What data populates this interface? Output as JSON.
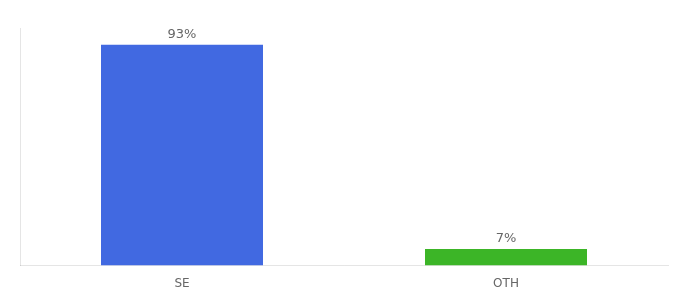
{
  "chart_data": {
    "type": "bar",
    "categories": [
      "SE",
      "OTH"
    ],
    "values": [
      93,
      7
    ],
    "value_labels": [
      "93%",
      "7%"
    ],
    "data_labels": true,
    "colors": [
      "#4169e1",
      "#3cb527"
    ],
    "ylim": [
      0,
      100
    ],
    "grid": false,
    "tick_labels": "x"
  }
}
